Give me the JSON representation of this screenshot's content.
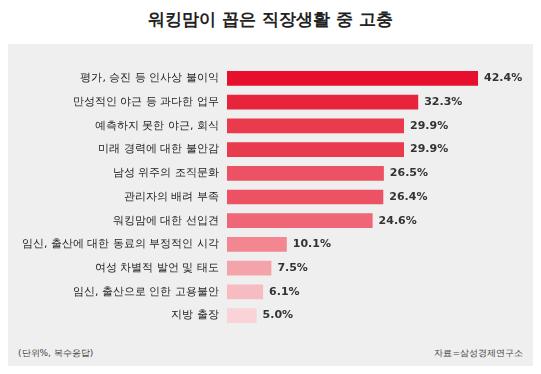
{
  "chart_data": {
    "type": "bar",
    "title": "워킹맘이 꼽은 직장생활 중 고충",
    "orientation": "horizontal",
    "categories": [
      "평가, 승진 등 인사상 불이익",
      "만성적인 야근 등 과다한 업무",
      "예측하지 못한 야근, 회식",
      "미래 경력에 대한 불안감",
      "남성 위주의 조직문화",
      "관리자의 배려 부족",
      "워킹맘에 대한 선입견",
      "임신, 출산에 대한 동료의 부정적인 시각",
      "여성 차별적 발언 및 태도",
      "임신, 출산으로 인한 고용불안",
      "지방 출장"
    ],
    "values": [
      42.4,
      32.3,
      29.9,
      29.9,
      26.5,
      26.4,
      24.6,
      10.1,
      7.5,
      6.1,
      5.0
    ],
    "value_labels": [
      "42.4%",
      "32.3%",
      "29.9%",
      "29.9%",
      "26.5%",
      "26.4%",
      "24.6%",
      "10.1%",
      "7.5%",
      "6.1%",
      "5.0%"
    ],
    "colors": [
      "#e60f2d",
      "#e8243c",
      "#ea3a4e",
      "#ea3a4e",
      "#ec5263",
      "#ec5263",
      "#ef6676",
      "#f28791",
      "#f5a3ab",
      "#f7bcc2",
      "#f9d3d7"
    ],
    "xlim": [
      0,
      50
    ],
    "grid": false,
    "tick_labels": "y",
    "data_labels": true,
    "annotations": [
      "(단위%, 복수응답)",
      "자료=삼성경제연구소"
    ]
  }
}
